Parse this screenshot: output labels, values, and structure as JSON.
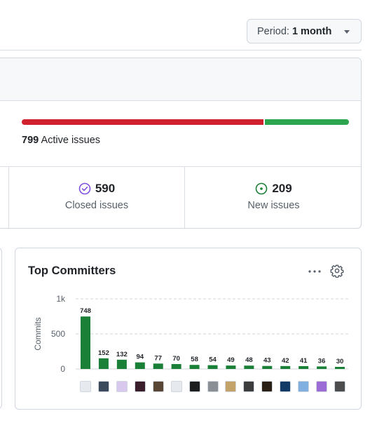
{
  "period": {
    "label": "Period:",
    "value": "1 month"
  },
  "issues": {
    "active_count": "799",
    "active_label": "Active issues",
    "closed_fraction": 0.738,
    "closed": {
      "count": "590",
      "label": "Closed issues"
    },
    "new": {
      "count": "209",
      "label": "New issues"
    },
    "colors": {
      "closed": "#cf222e",
      "new": "#2da44e",
      "closed_icon": "#8250df",
      "new_icon": "#1a7f37"
    }
  },
  "committers": {
    "title": "Top Committers",
    "more_icon": "kebab-horizontal-icon",
    "settings_icon": "gear-icon"
  },
  "chart_data": {
    "type": "bar",
    "ylabel": "Commits",
    "yticks": [
      "0",
      "500",
      "1k"
    ],
    "ylim": [
      0,
      1000
    ],
    "grid": true,
    "bar_color": "#1a7f37",
    "values": [
      748,
      152,
      132,
      94,
      77,
      70,
      58,
      54,
      49,
      48,
      43,
      42,
      41,
      36,
      30
    ]
  }
}
